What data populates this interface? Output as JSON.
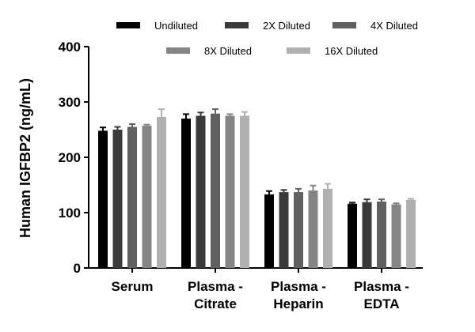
{
  "chart_data": {
    "type": "bar",
    "ylabel": "Human IGFBP2 (ng/mL)",
    "xlabel": "",
    "title": "",
    "ylim": [
      0,
      400
    ],
    "yticks": [
      0,
      100,
      200,
      300,
      400
    ],
    "categories": [
      [
        "Serum"
      ],
      [
        "Plasma -",
        "Citrate"
      ],
      [
        "Plasma -",
        "Heparin"
      ],
      [
        "Plasma -",
        "EDTA"
      ]
    ],
    "series": [
      {
        "name": "Undiluted",
        "color": "#000000",
        "values": [
          248,
          270,
          133,
          116
        ],
        "errors": [
          6,
          8,
          6,
          2
        ]
      },
      {
        "name": "2X Diluted",
        "color": "#3a3a3a",
        "values": [
          250,
          275,
          137,
          119
        ],
        "errors": [
          5,
          6,
          4,
          5
        ]
      },
      {
        "name": "4X Diluted",
        "color": "#606060",
        "values": [
          255,
          279,
          137,
          120
        ],
        "errors": [
          5,
          8,
          6,
          4
        ]
      },
      {
        "name": "8X Diluted",
        "color": "#858585",
        "values": [
          257,
          275,
          140,
          115
        ],
        "errors": [
          2,
          3,
          9,
          2
        ]
      },
      {
        "name": "16X Diluted",
        "color": "#b0b0b0",
        "values": [
          273,
          275,
          143,
          123
        ],
        "errors": [
          14,
          7,
          9,
          2
        ]
      }
    ],
    "legend_position": "top"
  }
}
